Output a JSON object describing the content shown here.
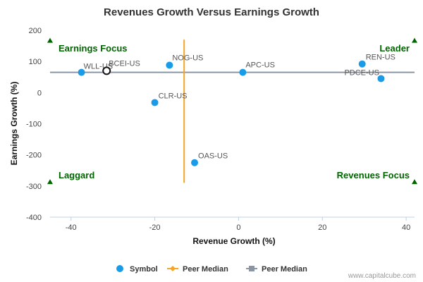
{
  "chart_data": {
    "type": "scatter",
    "title": "Revenues Growth Versus Earnings Growth",
    "xlabel": "Revenue Growth (%)",
    "ylabel": "Earnings Growth (%)",
    "xlim": [
      -45,
      42
    ],
    "ylim": [
      -400,
      200
    ],
    "x_ticks": [
      -40,
      -20,
      0,
      20,
      40
    ],
    "y_ticks": [
      -400,
      -300,
      -200,
      -100,
      0,
      100,
      200
    ],
    "grid": false,
    "points": [
      {
        "label": "WLL-US",
        "x": -37.5,
        "y": 65
      },
      {
        "label": "BCEI-US",
        "x": -31.5,
        "y": 70,
        "highlight": true
      },
      {
        "label": "NOG-US",
        "x": -16.5,
        "y": 88
      },
      {
        "label": "CLR-US",
        "x": -20,
        "y": -32
      },
      {
        "label": "OAS-US",
        "x": -10.5,
        "y": -225
      },
      {
        "label": "APC-US",
        "x": 1,
        "y": 65
      },
      {
        "label": "REN-US",
        "x": 29.5,
        "y": 92
      },
      {
        "label": "PDCE-US",
        "x": 34,
        "y": 45
      }
    ],
    "peer_median": {
      "x": -13,
      "y": 65
    },
    "quadrant_labels": {
      "top_left": "Earnings Focus",
      "top_right": "Leader",
      "bottom_left": "Laggard",
      "bottom_right": "Revenues Focus"
    },
    "legend": [
      {
        "name": "Symbol",
        "color": "#1a9be8"
      },
      {
        "name": "Peer Median",
        "color": "#f5a623"
      },
      {
        "name": "Peer Median",
        "color": "#8a96a3"
      }
    ],
    "legend_position": "bottom",
    "colors": {
      "point": "#1a9be8",
      "highlight_stroke": "#111111",
      "median_vertical": "#f5a623",
      "median_horizontal": "#8a96a3",
      "quadrant_marker": "#006400"
    }
  },
  "credit": "www.capitalcube.com"
}
